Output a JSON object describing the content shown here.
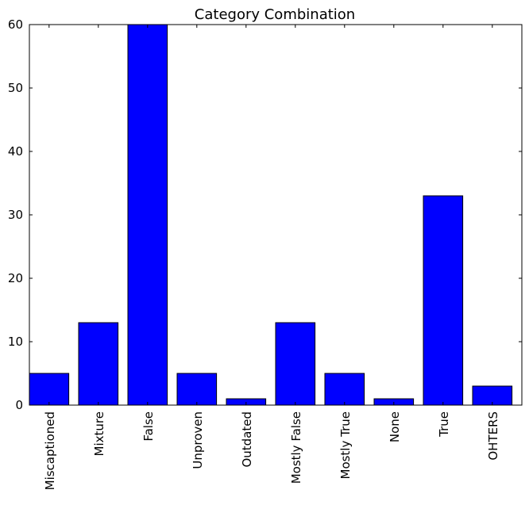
{
  "chart_data": {
    "type": "bar",
    "title": "Category Combination",
    "xlabel": "",
    "ylabel": "",
    "categories": [
      "Miscaptioned",
      "Mixture",
      "False",
      "Unproven",
      "Outdated",
      "Mostly False",
      "Mostly True",
      "None",
      "True",
      "OHTERS"
    ],
    "values": [
      5,
      13,
      60,
      5,
      1,
      13,
      5,
      1,
      33,
      3
    ],
    "ylim": [
      0,
      60
    ],
    "yticks": [
      0,
      10,
      20,
      30,
      40,
      50,
      60
    ],
    "bar_color": "#0000ff",
    "grid": false,
    "legend": "none"
  }
}
